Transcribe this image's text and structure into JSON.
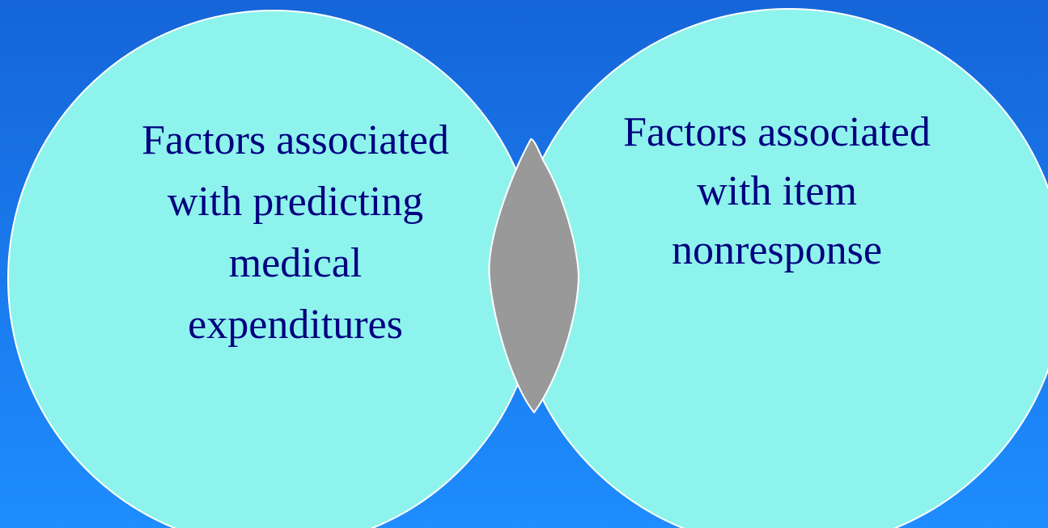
{
  "nodes": [
    {
      "label_lines": [
        "Factors associated",
        "with predicting",
        "medical",
        "expenditures"
      ]
    },
    {
      "label_lines": [
        "Factors associated",
        "with item",
        "nonresponse"
      ]
    }
  ]
}
